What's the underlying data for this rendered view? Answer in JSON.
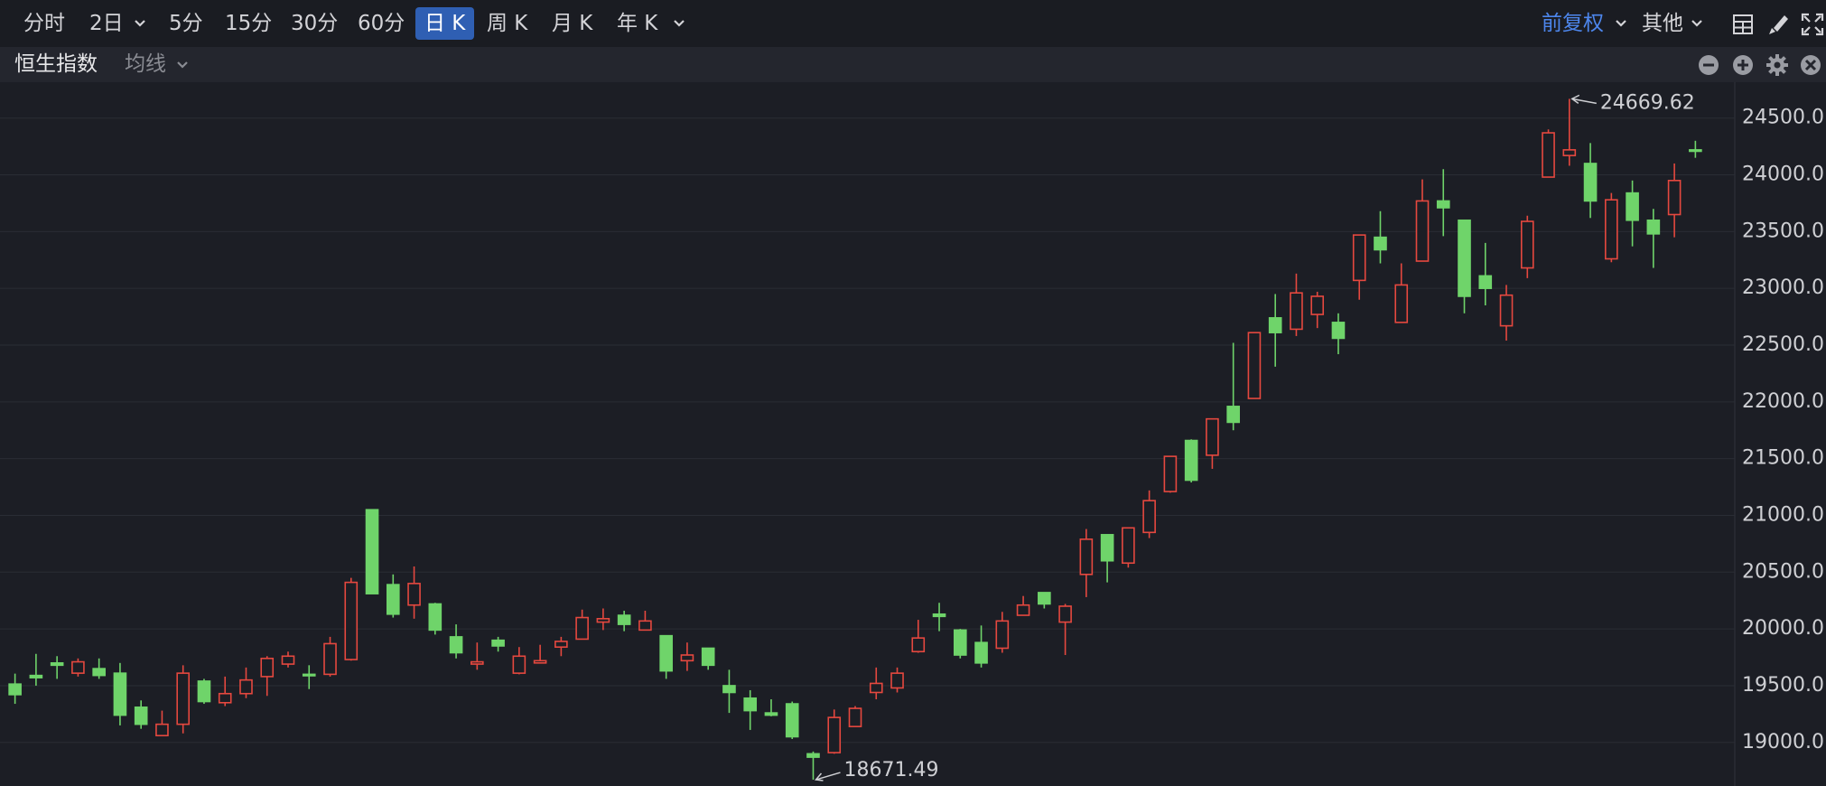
{
  "toolbar": {
    "tabs": [
      "分时",
      "2日",
      "5分",
      "15分",
      "30分",
      "60分",
      "日 K",
      "周 K",
      "月 K",
      "年 K"
    ],
    "right": [
      "前复权",
      "其他"
    ]
  },
  "chart_header": {
    "title": "恒生指数",
    "indicator": "均线"
  },
  "chart_data": {
    "type": "candlestick",
    "up_color": "#e5483f",
    "down_color": "#6fd46a",
    "grid": true,
    "ylim": [
      18640,
      24800
    ],
    "yticks": [
      {
        "value": 19000,
        "label": "19000.0"
      },
      {
        "value": 19500,
        "label": "19500.0"
      },
      {
        "value": 20000,
        "label": "20000.0"
      },
      {
        "value": 20500,
        "label": "20500.0"
      },
      {
        "value": 21000,
        "label": "21000.0"
      },
      {
        "value": 21500,
        "label": "21500.0"
      },
      {
        "value": 22000,
        "label": "22000.0"
      },
      {
        "value": 22500,
        "label": "22500.0"
      },
      {
        "value": 23000,
        "label": "23000.0"
      },
      {
        "value": 23500,
        "label": "23500.0"
      },
      {
        "value": 24000,
        "label": "24000.0"
      },
      {
        "value": 24500,
        "label": "24500.0"
      }
    ],
    "open": [
      19514,
      19590,
      19700,
      19610,
      19650,
      19610,
      19310,
      19060,
      19160,
      19540,
      19350,
      19430,
      19580,
      19690,
      19600,
      19600,
      19730,
      21050,
      20390,
      20210,
      20220,
      19930,
      19690,
      19900,
      19610,
      19700,
      19840,
      19910,
      20060,
      20120,
      19990,
      19940,
      19720,
      19830,
      19500,
      19390,
      19260,
      19340,
      18900,
      18910,
      19140,
      19440,
      19480,
      19800,
      20130,
      19990,
      19880,
      19830,
      20120,
      20320,
      20060,
      20480,
      20830,
      20580,
      20850,
      21210,
      21660,
      21530,
      21960,
      22030,
      22740,
      22640,
      22770,
      22700,
      23070,
      23450,
      22700,
      23240,
      23770,
      23600,
      23110,
      22670,
      23180,
      23980,
      24170,
      24100,
      23260,
      23840,
      23600,
      23650,
      24220
    ],
    "high": [
      19606,
      19780,
      19760,
      19740,
      19740,
      19700,
      19370,
      19280,
      19680,
      19560,
      19580,
      19660,
      19760,
      19800,
      19680,
      19930,
      20450,
      21050,
      20480,
      20550,
      20230,
      20040,
      19880,
      19930,
      19840,
      19860,
      19930,
      20170,
      20180,
      20160,
      20160,
      19940,
      19880,
      19830,
      19640,
      19460,
      19380,
      19360,
      18920,
      19290,
      19320,
      19660,
      19660,
      20080,
      20230,
      20000,
      20030,
      20150,
      20290,
      20320,
      20220,
      20880,
      20830,
      20890,
      21220,
      21520,
      21670,
      21850,
      22520,
      22610,
      22950,
      23130,
      22970,
      22780,
      23470,
      23680,
      23220,
      23960,
      24050,
      23600,
      23400,
      23030,
      23640,
      24400,
      24669.62,
      24280,
      23840,
      23950,
      23700,
      24100,
      24300
    ],
    "low": [
      19340,
      19500,
      19560,
      19580,
      19560,
      19150,
      19120,
      19060,
      19080,
      19340,
      19320,
      19390,
      19410,
      19660,
      19470,
      19580,
      19720,
      20310,
      20100,
      20090,
      19950,
      19740,
      19640,
      19800,
      19600,
      19700,
      19760,
      19910,
      19990,
      19980,
      19990,
      19560,
      19630,
      19640,
      19260,
      19110,
      19230,
      19030,
      18671.49,
      18900,
      19140,
      19380,
      19440,
      19790,
      19980,
      19740,
      19660,
      19790,
      20120,
      20180,
      19770,
      20280,
      20410,
      20540,
      20800,
      21200,
      21290,
      21410,
      21750,
      22030,
      22310,
      22580,
      22650,
      22420,
      22900,
      23220,
      22700,
      23240,
      23460,
      22780,
      22850,
      22540,
      23090,
      23980,
      24080,
      23620,
      23230,
      23370,
      23180,
      23450,
      24150
    ],
    "close": [
      19421,
      19570,
      19680,
      19710,
      19590,
      19240,
      19160,
      19160,
      19610,
      19360,
      19430,
      19550,
      19740,
      19760,
      19590,
      19870,
      20410,
      20310,
      20130,
      20400,
      19990,
      19790,
      19710,
      19850,
      19760,
      19720,
      19890,
      20100,
      20090,
      20040,
      20070,
      19630,
      19770,
      19680,
      19440,
      19280,
      19240,
      19050,
      18870,
      19220,
      19300,
      19520,
      19610,
      19920,
      20110,
      19770,
      19700,
      20070,
      20210,
      20220,
      20200,
      20790,
      20600,
      20890,
      21130,
      21520,
      21310,
      21850,
      21820,
      22610,
      22610,
      22960,
      22930,
      22560,
      23470,
      23340,
      23030,
      23770,
      23710,
      22930,
      23000,
      22940,
      23590,
      24370,
      24220,
      23770,
      23780,
      23600,
      23480,
      23950,
      24210
    ]
  }
}
